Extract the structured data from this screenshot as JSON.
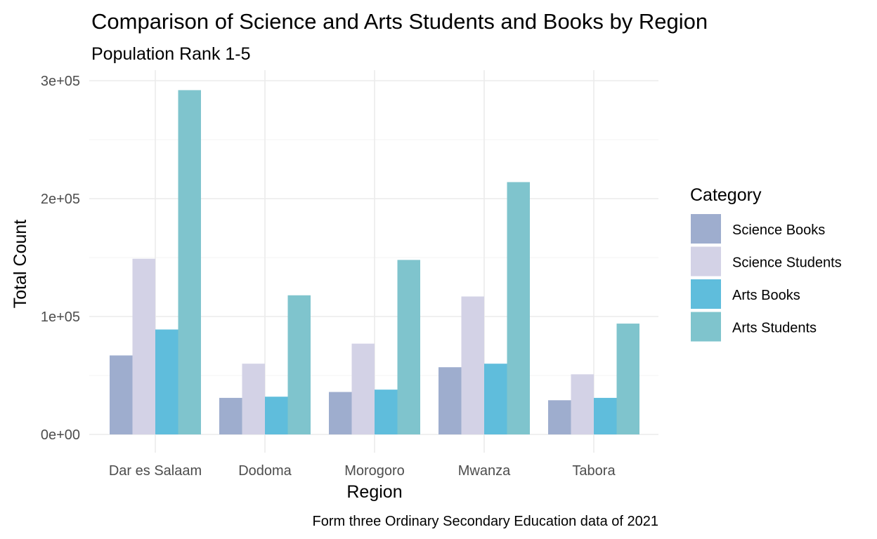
{
  "chart_data": {
    "type": "bar",
    "title": "Comparison of Science and Arts Students and Books by Region",
    "subtitle": "Population Rank 1-5",
    "xlabel": "Region",
    "ylabel": "Total Count",
    "caption": "Form three Ordinary Secondary Education data of 2021",
    "categories": [
      "Dar es Salaam",
      "Dodoma",
      "Morogoro",
      "Mwanza",
      "Tabora"
    ],
    "ylim": [
      0,
      300000
    ],
    "yticks": [
      0,
      100000,
      200000,
      300000
    ],
    "ytick_labels": [
      "0e+00",
      "1e+05",
      "2e+05",
      "3e+05"
    ],
    "grid": true,
    "legend": {
      "title": "Category",
      "position": "right"
    },
    "series": [
      {
        "name": "Science Books",
        "color": "#9eadce",
        "values": [
          67000,
          31000,
          36000,
          57000,
          29000
        ]
      },
      {
        "name": "Science Students",
        "color": "#d3d2e6",
        "values": [
          149000,
          60000,
          77000,
          117000,
          51000
        ]
      },
      {
        "name": "Arts Books",
        "color": "#5fbddc",
        "values": [
          89000,
          32000,
          38000,
          60000,
          31000
        ]
      },
      {
        "name": "Arts Students",
        "color": "#7fc4cd",
        "values": [
          292000,
          118000,
          148000,
          214000,
          94000
        ]
      }
    ]
  }
}
